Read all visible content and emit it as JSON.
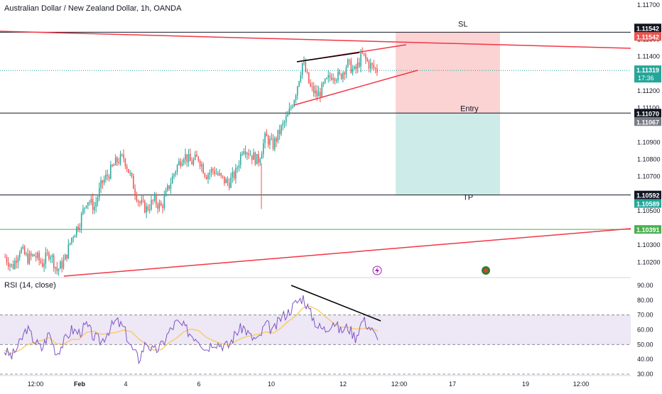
{
  "header": {
    "symbol_title": "Australian Dollar / New Zealand Dollar, 1h, OANDA"
  },
  "colors": {
    "up": "#26a69a",
    "down": "#ef5350",
    "trendline": "#f23645",
    "rsi_line": "#7e57c2",
    "rsi_ma": "#f9c74f",
    "rsi_band": "#ede7f6",
    "green_level": "#4caf50",
    "sl_zone": "#fbd3d3",
    "tp_zone": "#cdebe8"
  },
  "chart_data": {
    "type": "candlestick",
    "y_axis": {
      "min": 1.1011,
      "max": 1.1173,
      "tick_labels": [
        "1.11700",
        "1.11500",
        "1.11400",
        "1.11200",
        "1.11100",
        "1.10900",
        "1.10800",
        "1.10700",
        "1.10500",
        "1.10300",
        "1.10200"
      ],
      "tick_values": [
        1.117,
        1.115,
        1.114,
        1.112,
        1.111,
        1.109,
        1.108,
        1.107,
        1.105,
        1.103,
        1.102
      ]
    },
    "x_axis": {
      "tick_labels": [
        "12:00",
        "Feb",
        "4",
        "6",
        "10",
        "12",
        "12:00",
        "17",
        "19",
        "12:00"
      ]
    },
    "price_path": [
      1.1023,
      1.1017,
      1.1028,
      1.1022,
      1.1024,
      1.1019,
      1.1026,
      1.1015,
      1.1021,
      1.1035,
      1.1043,
      1.1057,
      1.1052,
      1.1066,
      1.1072,
      1.1079,
      1.1081,
      1.1068,
      1.1055,
      1.1051,
      1.1056,
      1.1052,
      1.1064,
      1.1075,
      1.1083,
      1.1078,
      1.1081,
      1.1071,
      1.1074,
      1.1069,
      1.1066,
      1.1072,
      1.1088,
      1.1083,
      1.1079,
      1.1093,
      1.1088,
      1.1097,
      1.1105,
      1.1118,
      1.1137,
      1.1122,
      1.1117,
      1.1124,
      1.113,
      1.1128,
      1.1136,
      1.1131,
      1.1141,
      1.1135,
      1.1132
    ],
    "levels": [
      {
        "name": "SL",
        "value": 1.11542,
        "price_text": "1.11542",
        "price_text2": "1.11542"
      },
      {
        "name": "Entry",
        "value": 1.1107,
        "price_text": "1.11070",
        "price_text2": "1.11067"
      },
      {
        "name": "TP",
        "value": 1.10592,
        "price_text": "1.10592",
        "price_text2": "1.10589"
      },
      {
        "name": "",
        "value": 1.10391,
        "price_text": "1.10391"
      }
    ],
    "last_price": {
      "value": 1.11319,
      "text": "1.11319",
      "countdown": "17:36"
    },
    "rsi": {
      "title": "RSI (14, close)",
      "min": 30,
      "max": 90,
      "band": [
        50,
        70
      ],
      "tick_labels": [
        "90.00",
        "80.00",
        "70.00",
        "60.00",
        "50.00",
        "40.00",
        "30.00"
      ],
      "tick_values": [
        90,
        80,
        70,
        60,
        50,
        40,
        30
      ],
      "series": [
        46,
        42,
        50,
        61,
        53,
        47,
        58,
        44,
        52,
        60,
        58,
        63,
        55,
        52,
        60,
        66,
        61,
        48,
        40,
        52,
        45,
        49,
        58,
        65,
        62,
        57,
        54,
        47,
        52,
        50,
        49,
        58,
        62,
        55,
        53,
        64,
        59,
        68,
        72,
        78,
        82,
        71,
        62,
        60,
        66,
        59,
        62,
        55,
        67,
        61,
        53
      ]
    },
    "annotations": [
      "SL",
      "Entry",
      "TP"
    ]
  },
  "status_icons": {
    "lightning": "lightning-icon",
    "avatar": "avatar-icon"
  }
}
